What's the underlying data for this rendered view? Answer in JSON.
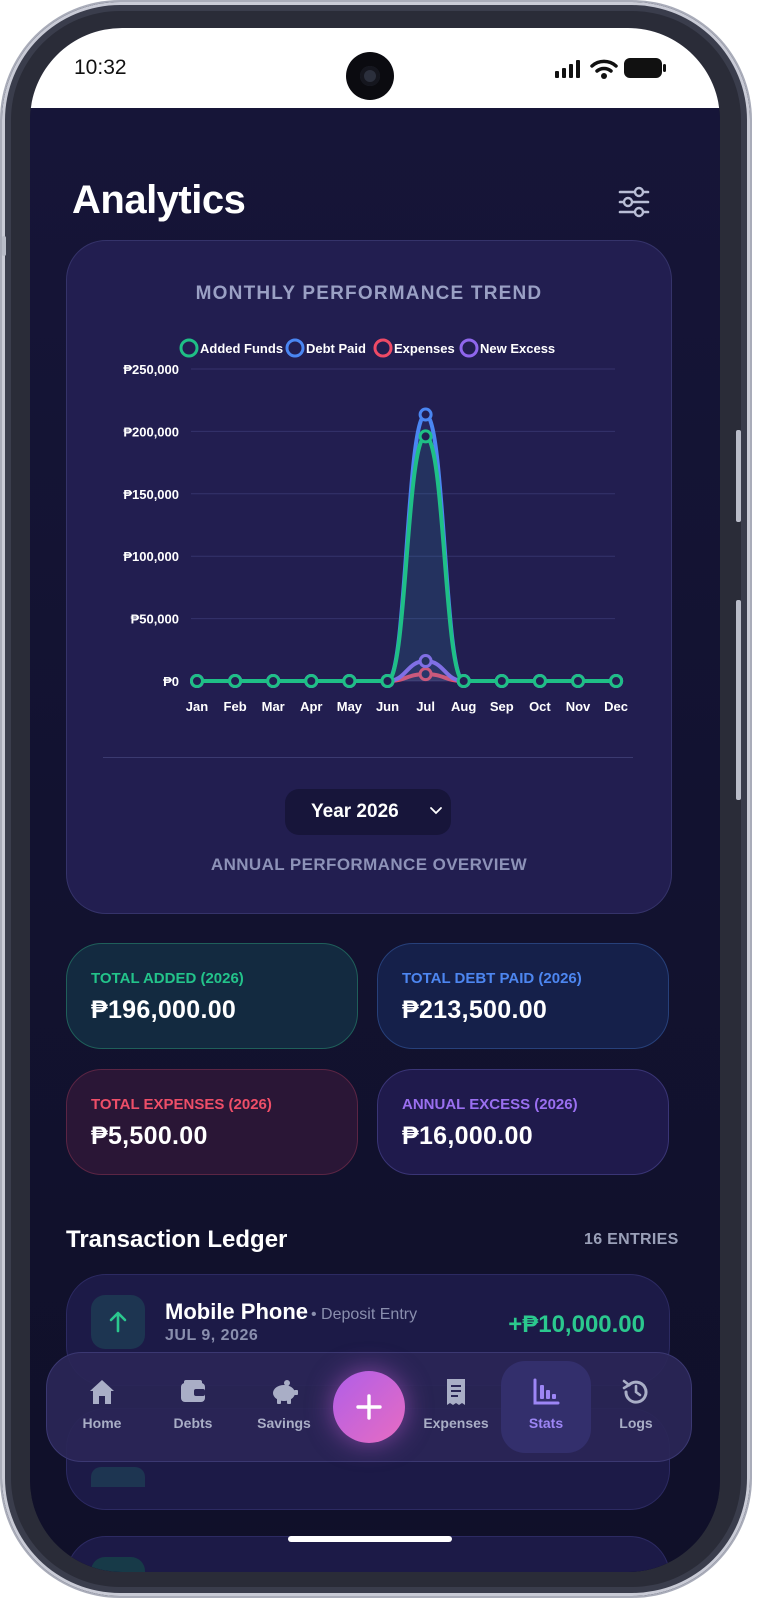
{
  "status": {
    "time": "10:32"
  },
  "header": {
    "title": "Analytics"
  },
  "chart": {
    "title": "MONTHLY PERFORMANCE TREND",
    "year_select": "Year 2026",
    "footer": "ANNUAL PERFORMANCE OVERVIEW"
  },
  "chart_data": {
    "type": "line",
    "categories": [
      "Jan",
      "Feb",
      "Mar",
      "Apr",
      "May",
      "Jun",
      "Jul",
      "Aug",
      "Sep",
      "Oct",
      "Nov",
      "Dec"
    ],
    "series": [
      {
        "name": "Added Funds",
        "color": "#1fbf86",
        "values": [
          0,
          0,
          0,
          0,
          0,
          0,
          196000,
          0,
          0,
          0,
          0,
          0
        ]
      },
      {
        "name": "Debt Paid",
        "color": "#4a86f2",
        "values": [
          0,
          0,
          0,
          0,
          0,
          0,
          213500,
          0,
          0,
          0,
          0,
          0
        ]
      },
      {
        "name": "Expenses",
        "color": "#ee4a66",
        "values": [
          0,
          0,
          0,
          0,
          0,
          0,
          5500,
          0,
          0,
          0,
          0,
          0
        ]
      },
      {
        "name": "New Excess",
        "color": "#8f66ec",
        "values": [
          0,
          0,
          0,
          0,
          0,
          0,
          16000,
          0,
          0,
          0,
          0,
          0
        ]
      }
    ],
    "y_ticks": [
      "₱0",
      "₱50,000",
      "₱100,000",
      "₱150,000",
      "₱200,000",
      "₱250,000"
    ],
    "ylim": [
      0,
      250000
    ],
    "legend_position": "top",
    "grid": true
  },
  "stats": {
    "added": {
      "label": "TOTAL ADDED (2026)",
      "value": "₱196,000.00"
    },
    "debt": {
      "label": "TOTAL DEBT PAID (2026)",
      "value": "₱213,500.00"
    },
    "expenses": {
      "label": "TOTAL EXPENSES (2026)",
      "value": "₱5,500.00"
    },
    "excess": {
      "label": "ANNUAL EXCESS (2026)",
      "value": "₱16,000.00"
    }
  },
  "ledger": {
    "title": "Transaction Ledger",
    "count": "16 ENTRIES",
    "items": [
      {
        "name": "Mobile Phone",
        "type": "• Deposit Entry",
        "date": "JUL 9, 2026",
        "amount": "+₱10,000.00"
      }
    ]
  },
  "nav": {
    "items": [
      "Home",
      "Debts",
      "Savings",
      "Expenses",
      "Stats",
      "Logs"
    ],
    "active": "Stats"
  }
}
